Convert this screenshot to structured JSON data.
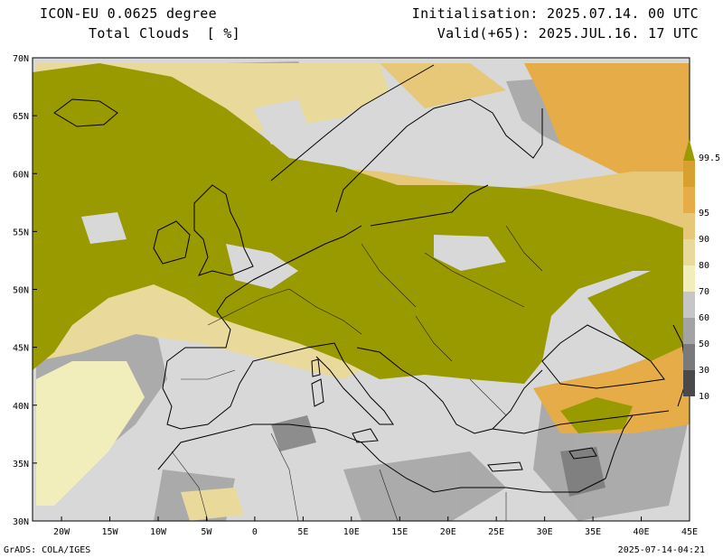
{
  "header": {
    "model": "ICON-EU 0.0625 degree",
    "field": "Total Clouds  [ %]",
    "initialisation": "Initialisation: 2025.07.14. 00 UTC",
    "valid": "Valid(+65): 2025.JUL.16. 17 UTC"
  },
  "footer": {
    "software": "GrADS: COLA/IGES",
    "timestamp": "2025-07-14-04:21"
  },
  "map": {
    "lon_range": [
      -23,
      45
    ],
    "lat_range": [
      30,
      70
    ],
    "lat_labels": [
      "30N",
      "35N",
      "40N",
      "45N",
      "50N",
      "55N",
      "60N",
      "65N",
      "70N"
    ],
    "lon_labels": [
      "20W",
      "15W",
      "10W",
      "5W",
      "0",
      "5E",
      "10E",
      "15E",
      "20E",
      "25E",
      "30E",
      "35E",
      "40E",
      "45E"
    ],
    "background_color": "#d8d8d8",
    "overcast_color": "#999900"
  },
  "legend": {
    "labels": [
      "10",
      "30",
      "50",
      "60",
      "70",
      "80",
      "90",
      "95",
      "99.5"
    ],
    "colors": [
      "#4a4a4a",
      "#7a7a7a",
      "#a3a3a3",
      "#c6c6c6",
      "#f2eebc",
      "#e9d99a",
      "#e7c778",
      "#e5ac48",
      "#d8a030",
      "#999900"
    ]
  }
}
